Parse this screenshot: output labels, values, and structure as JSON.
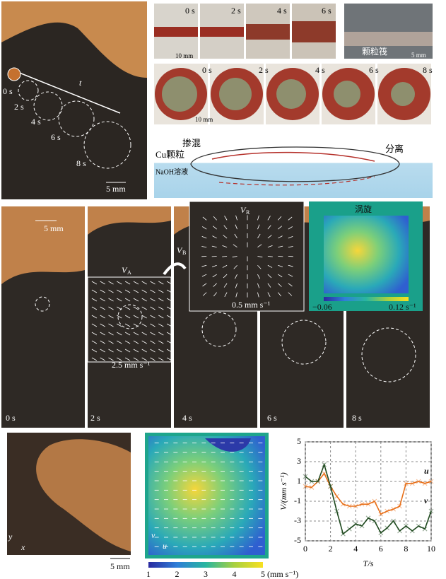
{
  "top_left": {
    "labels": [
      "0 s",
      "2 s",
      "4 s",
      "6 s",
      "8 s"
    ],
    "arrow": "t",
    "scale": "5 mm"
  },
  "top_right": {
    "row1_labels": [
      "0 s",
      "2 s",
      "4 s",
      "6 s"
    ],
    "row1_scale": "10 mm",
    "raft": "颗粒筏",
    "raft_scale": "5 mm",
    "row2_labels": [
      "0 s",
      "2 s",
      "4 s",
      "6 s",
      "8 s"
    ],
    "row2_scale": "10 mm"
  },
  "diagram": {
    "particles": "Cu颗粒",
    "mixing": "掺混",
    "separation": "分离",
    "solution": "NaOH溶液"
  },
  "middle": {
    "labels": [
      "0 s",
      "2 s",
      "4 s",
      "6 s",
      "8 s"
    ],
    "scale": "5 mm",
    "vb": "V",
    "vb_sub": "B",
    "va": "V",
    "va_sub": "A",
    "va_scale": "2.5 mm s⁻¹",
    "vr": "V",
    "vr_sub": "R",
    "vr_scale": "0.5 mm s⁻¹",
    "vortex": "涡旋",
    "vortex_min": "−0.06",
    "vortex_max": "0.12 s⁻¹"
  },
  "bottom_left": {
    "scale": "5 mm",
    "y": "y",
    "x": "x"
  },
  "bottom_middle": {
    "v": "v",
    "u": "u",
    "colorbar_ticks": [
      1,
      2,
      3,
      4,
      5
    ],
    "colorbar_unit": "(mm s⁻¹)"
  },
  "chart_data": {
    "type": "line",
    "ylabel": "V/(mm s⁻¹)",
    "xlabel": "T/s",
    "x": [
      0,
      0.5,
      1,
      1.5,
      2,
      2.5,
      3,
      3.5,
      4,
      4.5,
      5,
      5.5,
      6,
      6.5,
      7,
      7.5,
      8,
      8.5,
      9,
      9.5,
      10
    ],
    "series": [
      {
        "name": "u",
        "color": "#e8701a",
        "values": [
          0.5,
          0.4,
          1.0,
          1.8,
          0.5,
          -0.5,
          -1.3,
          -1.5,
          -1.5,
          -1.3,
          -1.3,
          -1.0,
          -2.3,
          -2.0,
          -1.8,
          -1.5,
          0.8,
          0.8,
          1.0,
          0.8,
          1.0
        ]
      },
      {
        "name": "v",
        "color": "#1f4a1f",
        "values": [
          1.5,
          1.0,
          1.0,
          2.7,
          0.5,
          -2.0,
          -4.3,
          -3.8,
          -3.3,
          -3.5,
          -2.7,
          -3.0,
          -4.2,
          -3.7,
          -3.0,
          -4.0,
          -3.5,
          -4.0,
          -3.5,
          -3.8,
          -2.0
        ]
      }
    ],
    "xlim": [
      0,
      10
    ],
    "ylim": [
      -5,
      5
    ],
    "xticks": [
      0,
      2,
      4,
      6,
      8,
      10
    ],
    "yticks": [
      -5,
      -3,
      -1,
      1,
      3,
      5
    ],
    "grid": true
  }
}
